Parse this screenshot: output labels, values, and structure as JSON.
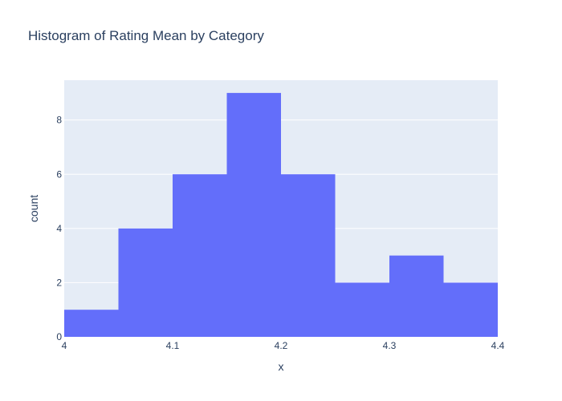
{
  "chart_data": {
    "type": "bar",
    "subtype": "histogram",
    "title": "Histogram of Rating Mean by Category",
    "xlabel": "x",
    "ylabel": "count",
    "bin_edges": [
      4.0,
      4.05,
      4.1,
      4.15,
      4.2,
      4.25,
      4.3,
      4.35,
      4.4
    ],
    "values": [
      1,
      4,
      6,
      9,
      6,
      2,
      3,
      2
    ],
    "xlim": [
      4.0,
      4.4
    ],
    "ylim": [
      0,
      9.47
    ],
    "x_ticks": [
      4.0,
      4.1,
      4.2,
      4.3,
      4.4
    ],
    "x_tick_labels": [
      "4",
      "4.1",
      "4.2",
      "4.3",
      "4.4"
    ],
    "y_ticks": [
      0,
      2,
      4,
      6,
      8
    ],
    "y_tick_labels": [
      "0",
      "2",
      "4",
      "6",
      "8"
    ],
    "grid": true,
    "legend": "none",
    "colors": {
      "bar": "#636efa",
      "plot_background": "#e5ecf6",
      "gridline": "#ffffff",
      "text": "#2a3f5f"
    }
  }
}
